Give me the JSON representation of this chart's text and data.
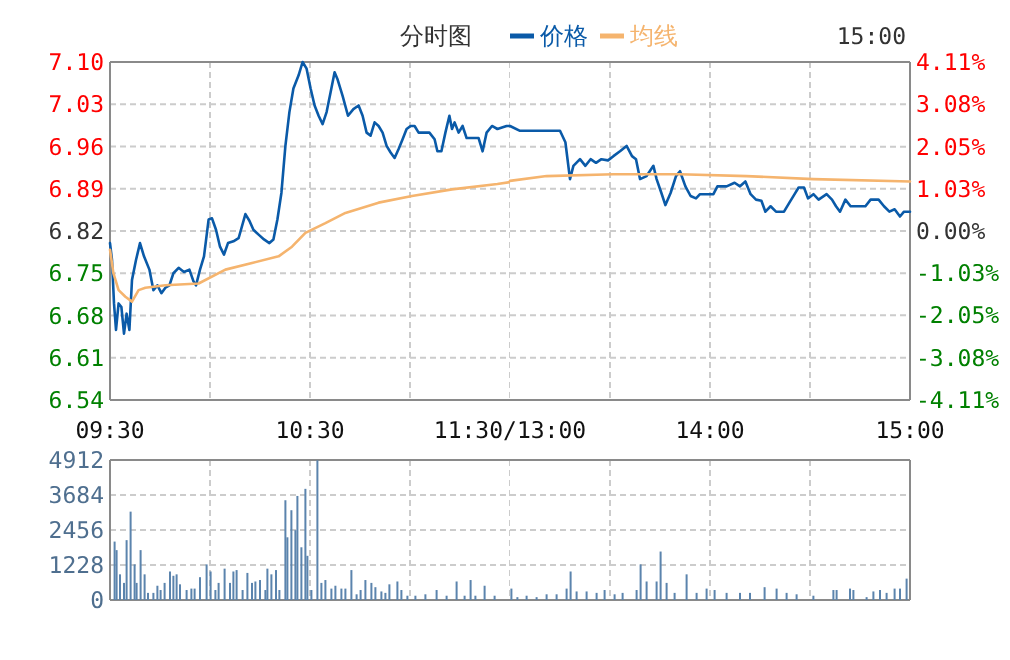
{
  "chart_data": [
    {
      "type": "line",
      "title": "分时图",
      "series": [
        {
          "name": "价格",
          "color": "#0a5aa8",
          "x": [
            9.5,
            9.51,
            9.52,
            9.53,
            9.543,
            9.557,
            9.57,
            9.583,
            9.597,
            9.61,
            9.63,
            9.65,
            9.67,
            9.697,
            9.717,
            9.737,
            9.757,
            9.777,
            9.797,
            9.817,
            9.843,
            9.87,
            9.897,
            9.917,
            9.93,
            9.95,
            9.97,
            9.993,
            10.01,
            10.03,
            10.05,
            10.07,
            10.09,
            10.117,
            10.143,
            10.177,
            10.197,
            10.217,
            10.243,
            10.27,
            10.297,
            10.317,
            10.337,
            10.357,
            10.377,
            10.397,
            10.417,
            10.443,
            10.463,
            10.483,
            10.503,
            10.523,
            10.543,
            10.563,
            10.583,
            10.603,
            10.623,
            10.637,
            10.663,
            10.69,
            10.717,
            10.743,
            10.763,
            10.783,
            10.803,
            10.823,
            10.843,
            10.863,
            10.883,
            10.903,
            10.923,
            10.943,
            10.963,
            10.983,
            11.003,
            11.023,
            11.043,
            11.097,
            11.123,
            11.137,
            11.157,
            11.177,
            11.197,
            11.21,
            11.223,
            11.243,
            11.263,
            11.283,
            11.31,
            11.343,
            11.363,
            11.383,
            11.41,
            11.437,
            11.483,
            11.5
          ],
          "values": [
            6.8,
            6.772,
            6.7,
            6.656,
            6.7,
            6.694,
            6.65,
            6.683,
            6.656,
            6.739,
            6.772,
            6.8,
            6.778,
            6.756,
            6.722,
            6.73,
            6.717,
            6.726,
            6.73,
            6.75,
            6.759,
            6.752,
            6.756,
            6.737,
            6.73,
            6.756,
            6.778,
            6.839,
            6.841,
            6.822,
            6.794,
            6.781,
            6.8,
            6.803,
            6.808,
            6.848,
            6.837,
            6.822,
            6.814,
            6.806,
            6.8,
            6.806,
            6.839,
            6.883,
            6.961,
            7.017,
            7.056,
            7.078,
            7.1,
            7.089,
            7.056,
            7.028,
            7.011,
            6.997,
            7.017,
            7.05,
            7.083,
            7.072,
            7.044,
            7.011,
            7.022,
            7.028,
            7.011,
            6.983,
            6.978,
            7.0,
            6.994,
            6.983,
            6.961,
            6.95,
            6.941,
            6.956,
            6.972,
            6.989,
            6.994,
            6.994,
            6.983,
            6.983,
            6.972,
            6.952,
            6.952,
            6.983,
            7.011,
            6.989,
            7.0,
            6.983,
            6.994,
            6.974,
            6.974,
            6.974,
            6.952,
            6.983,
            6.994,
            6.989,
            6.994,
            6.994
          ]
        },
        {
          "name": "均线",
          "color": "#f5b46e",
          "x": [
            9.5,
            9.517,
            9.543,
            9.577,
            9.61,
            9.643,
            9.677,
            9.777,
            9.943,
            10.077,
            10.21,
            10.343,
            10.41,
            10.477,
            10.577,
            10.677,
            10.843,
            11.01,
            11.21,
            11.437,
            11.5
          ],
          "values": [
            6.789,
            6.75,
            6.722,
            6.711,
            6.703,
            6.722,
            6.726,
            6.73,
            6.733,
            6.756,
            6.767,
            6.778,
            6.794,
            6.817,
            6.833,
            6.85,
            6.867,
            6.878,
            6.889,
            6.898,
            6.901
          ]
        }
      ],
      "xlim": [
        9.5,
        11.5
      ],
      "xticks": [
        {
          "value": 9.5,
          "label": "09:30"
        },
        {
          "value": 10,
          "label": null
        },
        {
          "value": 10.5,
          "label": "10:30"
        },
        {
          "value": 11,
          "label": null
        },
        {
          "value": 11.5,
          "label": "11:30/13:00"
        }
      ],
      "ylim": [
        6.54,
        7.1
      ],
      "yticks": [
        {
          "value": 6.54,
          "label": "6.54"
        },
        {
          "value": 6.61,
          "label": "6.61"
        },
        {
          "value": 6.68,
          "label": "6.68"
        },
        {
          "value": 6.75,
          "label": "6.75"
        },
        {
          "value": 6.82,
          "label": "6.82"
        },
        {
          "value": 6.89,
          "label": "6.89"
        },
        {
          "value": 6.96,
          "label": "6.96"
        },
        {
          "value": 7.03,
          "label": "7.03"
        },
        {
          "value": 7.1,
          "label": "7.10"
        }
      ],
      "grid": true,
      "legend": "top"
    },
    {
      "type": "line",
      "annotations": [
        "15:00"
      ],
      "series": [
        {
          "color": "#0a5aa8",
          "x": [
            13,
            13.05,
            13.25,
            13.277,
            13.3,
            13.317,
            13.35,
            13.377,
            13.403,
            13.43,
            13.457,
            13.49,
            13.517,
            13.55,
            13.583,
            13.61,
            13.63,
            13.65,
            13.683,
            13.717,
            13.733,
            13.757,
            13.777,
            13.803,
            13.83,
            13.85,
            13.877,
            13.903,
            13.93,
            13.95,
            14.017,
            14.037,
            14.083,
            14.123,
            14.15,
            14.177,
            14.203,
            14.23,
            14.257,
            14.277,
            14.303,
            14.33,
            14.37,
            14.397,
            14.423,
            14.443,
            14.47,
            14.49,
            14.517,
            14.543,
            14.583,
            14.61,
            14.63,
            14.65,
            14.677,
            14.703,
            14.777,
            14.803,
            14.843,
            14.87,
            14.897,
            14.923,
            14.95,
            14.97,
            15
          ],
          "values": [
            6.994,
            6.986,
            6.986,
            6.967,
            6.906,
            6.928,
            6.939,
            6.928,
            6.939,
            6.933,
            6.939,
            6.937,
            6.944,
            6.952,
            6.961,
            6.944,
            6.939,
            6.906,
            6.911,
            6.928,
            6.906,
            6.883,
            6.863,
            6.883,
            6.911,
            6.919,
            6.894,
            6.878,
            6.874,
            6.881,
            6.881,
            6.894,
            6.894,
            6.9,
            6.894,
            6.902,
            6.881,
            6.872,
            6.87,
            6.852,
            6.861,
            6.852,
            6.852,
            6.867,
            6.881,
            6.892,
            6.892,
            6.874,
            6.881,
            6.872,
            6.881,
            6.872,
            6.861,
            6.852,
            6.872,
            6.861,
            6.861,
            6.872,
            6.872,
            6.861,
            6.852,
            6.856,
            6.844,
            6.852,
            6.852
          ]
        },
        {
          "color": "#f5b46e",
          "x": [
            13,
            13.183,
            13.517,
            13.85,
            14.183,
            14.517,
            15
          ],
          "values": [
            6.903,
            6.911,
            6.914,
            6.914,
            6.911,
            6.906,
            6.902
          ]
        }
      ],
      "xlim": [
        13,
        15
      ],
      "xticks": [
        {
          "value": 13.5,
          "label": null
        },
        {
          "value": 14,
          "label": "14:00"
        },
        {
          "value": 14.5,
          "label": null
        },
        {
          "value": 15,
          "label": "15:00"
        }
      ],
      "ylim": [
        6.54,
        7.1
      ],
      "y2lim": [
        -4.11,
        4.11
      ],
      "y2ticks": [
        {
          "value": -4.11,
          "label": "-4.11%"
        },
        {
          "value": -3.08,
          "label": "-3.08%"
        },
        {
          "value": -2.05,
          "label": "-2.05%"
        },
        {
          "value": -1.03,
          "label": "-1.03%"
        },
        {
          "value": 0,
          "label": "0.00%"
        },
        {
          "value": 1.03,
          "label": "1.03%"
        },
        {
          "value": 2.05,
          "label": "2.05%"
        },
        {
          "value": 3.08,
          "label": "3.08%"
        },
        {
          "value": 4.11,
          "label": "4.11%"
        }
      ],
      "grid": true
    },
    {
      "type": "bar",
      "color": "#5b84ad",
      "x": [
        9.523,
        9.533,
        9.55,
        9.57,
        9.583,
        9.603,
        9.623,
        9.633,
        9.653,
        9.673,
        9.69,
        9.717,
        9.737,
        9.753,
        9.773,
        9.8,
        9.817,
        9.833,
        9.85,
        9.883,
        9.907,
        9.923,
        9.95,
        9.983,
        10.003,
        10.027,
        10.043,
        10.073,
        10.1,
        10.117,
        10.133,
        10.163,
        10.187,
        10.21,
        10.227,
        10.25,
        10.277,
        10.287,
        10.307,
        10.33,
        10.347,
        10.377,
        10.387,
        10.407,
        10.427,
        10.437,
        10.457,
        10.477,
        10.487,
        10.507,
        10.537,
        10.557,
        10.577,
        10.607,
        10.627,
        10.657,
        10.677,
        10.707,
        10.733,
        10.753,
        10.777,
        10.807,
        10.827,
        10.857,
        10.877,
        10.897,
        10.937,
        10.957,
        10.987,
        11.027,
        11.077,
        11.133,
        11.183,
        11.233,
        11.273,
        11.303,
        11.327,
        11.373,
        11.423
      ],
      "values": [
        2050,
        1750,
        900,
        600,
        2100,
        3100,
        1250,
        600,
        1750,
        900,
        250,
        250,
        500,
        350,
        600,
        1000,
        850,
        900,
        550,
        350,
        400,
        400,
        800,
        1250,
        1000,
        350,
        600,
        1100,
        600,
        1000,
        1050,
        350,
        950,
        600,
        650,
        700,
        350,
        1100,
        900,
        1050,
        350,
        3500,
        2200,
        3150,
        2450,
        3650,
        1850,
        3900,
        1550,
        350,
        4900,
        600,
        700,
        400,
        500,
        400,
        400,
        1050,
        200,
        350,
        700,
        600,
        450,
        300,
        250,
        550,
        650,
        350,
        150,
        150,
        200,
        350,
        150,
        650,
        150,
        700,
        150,
        500,
        150
      ],
      "xlim": [
        9.5,
        11.5
      ],
      "xticks": [
        10,
        10.5,
        11,
        11.5
      ],
      "ylim": [
        0,
        4912
      ],
      "yticks": [
        0,
        1228,
        2456,
        3684,
        4912
      ],
      "grid": true,
      "tick_labels": "y"
    },
    {
      "type": "bar",
      "color": "#5b84ad",
      "x": [
        13.007,
        13.037,
        13.083,
        13.133,
        13.183,
        13.233,
        13.283,
        13.303,
        13.333,
        13.383,
        13.433,
        13.473,
        13.523,
        13.563,
        13.633,
        13.653,
        13.683,
        13.733,
        13.753,
        13.783,
        13.823,
        13.883,
        13.933,
        13.983,
        14.023,
        14.083,
        14.15,
        14.2,
        14.273,
        14.333,
        14.383,
        14.433,
        14.517,
        14.617,
        14.633,
        14.7,
        14.717,
        14.783,
        14.817,
        14.85,
        14.883,
        14.923,
        14.95,
        14.983
      ],
      "values": [
        400,
        100,
        150,
        100,
        200,
        200,
        400,
        1000,
        300,
        300,
        250,
        350,
        200,
        250,
        350,
        1250,
        650,
        650,
        1700,
        600,
        250,
        900,
        250,
        400,
        350,
        250,
        250,
        250,
        450,
        400,
        250,
        200,
        150,
        350,
        350,
        400,
        350,
        100,
        300,
        350,
        250,
        400,
        400,
        750
      ],
      "xlim": [
        13,
        15
      ],
      "xticks": [
        13.5,
        14,
        14.5
      ],
      "ylim": [
        0,
        4912
      ],
      "yticks": [
        1228,
        2456,
        3684
      ],
      "grid": true,
      "tick_labels": false
    }
  ]
}
